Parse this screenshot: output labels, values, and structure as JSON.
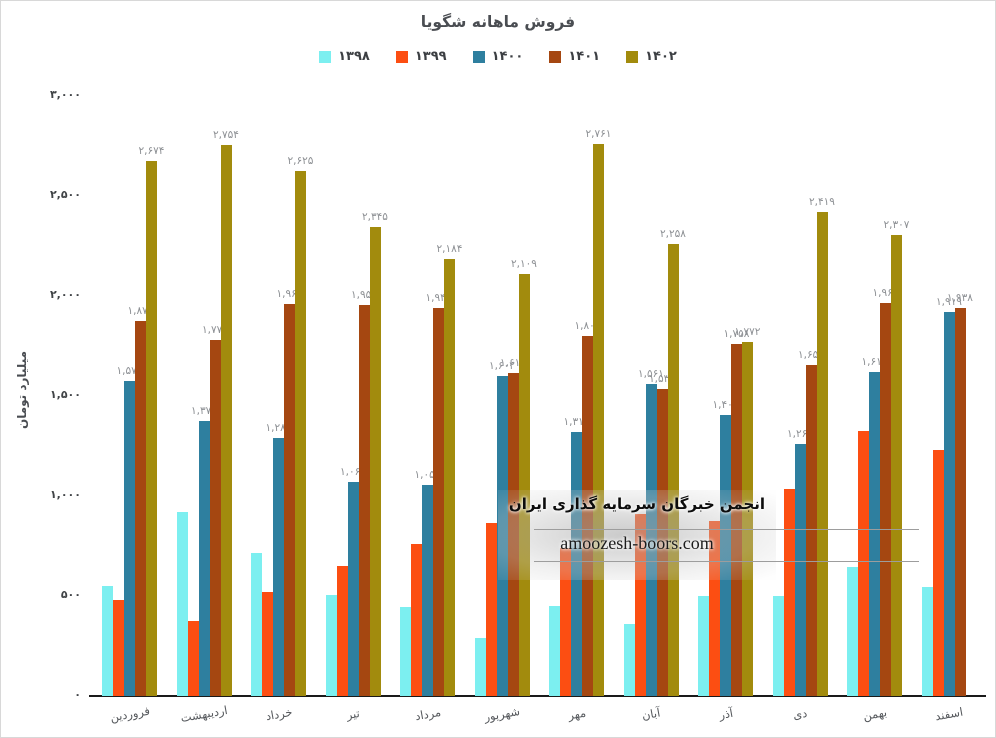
{
  "title": "فروش ماهانه شگویا",
  "y_axis_title": "میلیارد تومان",
  "watermark": {
    "org_name": "انجمن خبرگان سرمایه گذاری ایران",
    "domain": "amoozesh-boors.com"
  },
  "chart_data": {
    "type": "bar",
    "title": "فروش ماهانه شگویا",
    "xlabel": "",
    "ylabel": "میلیارد تومان",
    "ylim": [
      0,
      3000
    ],
    "ytick_step": 500,
    "grid": false,
    "legend_position": "top",
    "digit_style": "persian",
    "categories": [
      "فروردین",
      "اردیبهشت",
      "خرداد",
      "تیر",
      "مرداد",
      "شهریور",
      "مهر",
      "آبان",
      "آذر",
      "دی",
      "بهمن",
      "اسفند"
    ],
    "series": [
      {
        "name": "۱۳۹۸",
        "year": 1398,
        "color": "#7CEFF0",
        "data_labels": false,
        "values": [
          550,
          920,
          715,
          505,
          445,
          290,
          450,
          360,
          500,
          500,
          645,
          545
        ]
      },
      {
        "name": "۱۳۹۹",
        "year": 1399,
        "color": "#FC4E12",
        "data_labels": false,
        "values": [
          480,
          375,
          520,
          650,
          760,
          865,
          740,
          910,
          875,
          1035,
          1325,
          1230
        ]
      },
      {
        "name": "۱۴۰۰",
        "year": 1400,
        "color": "#2E7F9F",
        "data_labels": true,
        "values": [
          1574,
          1373,
          1288,
          1068,
          1054,
          1602,
          1318,
          1561,
          1407,
          1260,
          1618,
          1919
        ]
      },
      {
        "name": "۱۴۰۱",
        "year": 1401,
        "color": "#A54711",
        "data_labels": true,
        "values": [
          1874,
          1778,
          1962,
          1956,
          1942,
          1617,
          1800,
          1536,
          1758,
          1654,
          1964,
          1938
        ]
      },
      {
        "name": "۱۴۰۲",
        "year": 1402,
        "color": "#A28B0D",
        "data_labels": true,
        "values": [
          2674,
          2754,
          2625,
          2345,
          2184,
          2109,
          2761,
          2258,
          1772,
          2419,
          2307,
          null
        ]
      }
    ]
  }
}
